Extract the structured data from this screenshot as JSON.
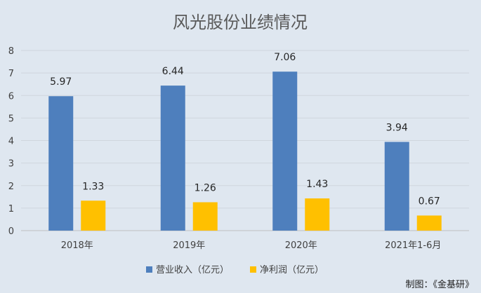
{
  "chart_data": {
    "type": "bar",
    "title": "风光股份业绩情况",
    "categories": [
      "2018年",
      "2019年",
      "2020年",
      "2021年1-6月"
    ],
    "series": [
      {
        "name": "营业收入（亿元）",
        "values": [
          5.97,
          6.44,
          7.06,
          3.94
        ],
        "color": "#4e7fbd"
      },
      {
        "name": "净利润（亿元）",
        "values": [
          1.33,
          1.26,
          1.43,
          0.67
        ],
        "color": "#ffc000"
      }
    ],
    "yticks": [
      "0",
      "1",
      "2",
      "3",
      "4",
      "5",
      "6",
      "7",
      "8"
    ],
    "ylim": [
      0,
      8
    ],
    "grid": true,
    "legend_position": "bottom"
  },
  "source_note": "制图：《金基研》"
}
